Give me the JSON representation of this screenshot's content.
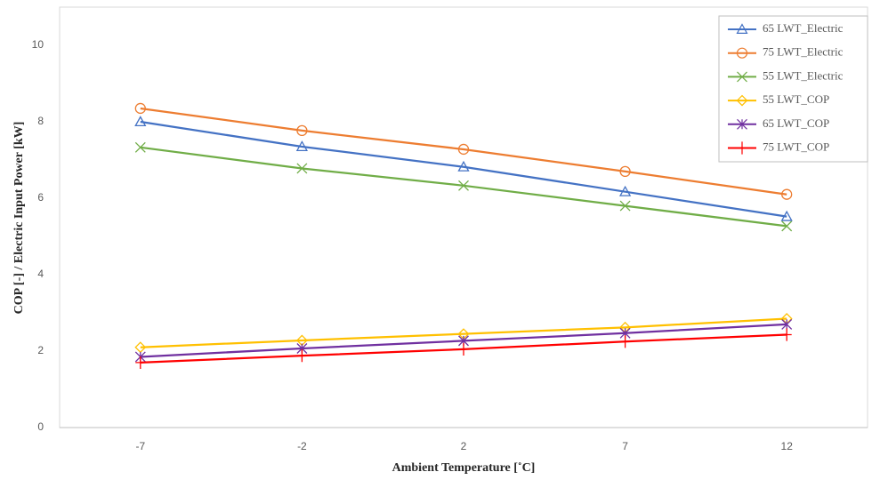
{
  "chart_data": {
    "type": "line",
    "x_label": "Ambient Temperature [˚C]",
    "y_label": "COP [-] / Electric Input Power [kW]",
    "categories": [
      "-7",
      "-2",
      "2",
      "7",
      "12"
    ],
    "ylim": [
      0,
      11
    ],
    "yticks": [
      0,
      2,
      4,
      6,
      8,
      10
    ],
    "legend": "top-right",
    "series": [
      {
        "name": "65 LWT_Electric",
        "color": "#4472c4",
        "marker": "triangle",
        "values": [
          8.0,
          7.35,
          6.82,
          6.17,
          5.52
        ]
      },
      {
        "name": "75 LWT_Electric",
        "color": "#ed7d31",
        "marker": "circle",
        "values": [
          8.35,
          7.77,
          7.28,
          6.7,
          6.1
        ]
      },
      {
        "name": "55 LWT_Electric",
        "color": "#70ad47",
        "marker": "x",
        "values": [
          7.33,
          6.78,
          6.33,
          5.8,
          5.27
        ]
      },
      {
        "name": "55 LWT_COP",
        "color": "#ffc000",
        "marker": "diamond",
        "values": [
          2.1,
          2.28,
          2.45,
          2.62,
          2.85
        ]
      },
      {
        "name": "65 LWT_COP",
        "color": "#7030a0",
        "marker": "asterisk",
        "values": [
          1.85,
          2.07,
          2.27,
          2.47,
          2.7
        ]
      },
      {
        "name": "75 LWT_COP",
        "color": "#ff0000",
        "marker": "plus",
        "values": [
          1.7,
          1.88,
          2.05,
          2.25,
          2.43
        ]
      }
    ]
  }
}
